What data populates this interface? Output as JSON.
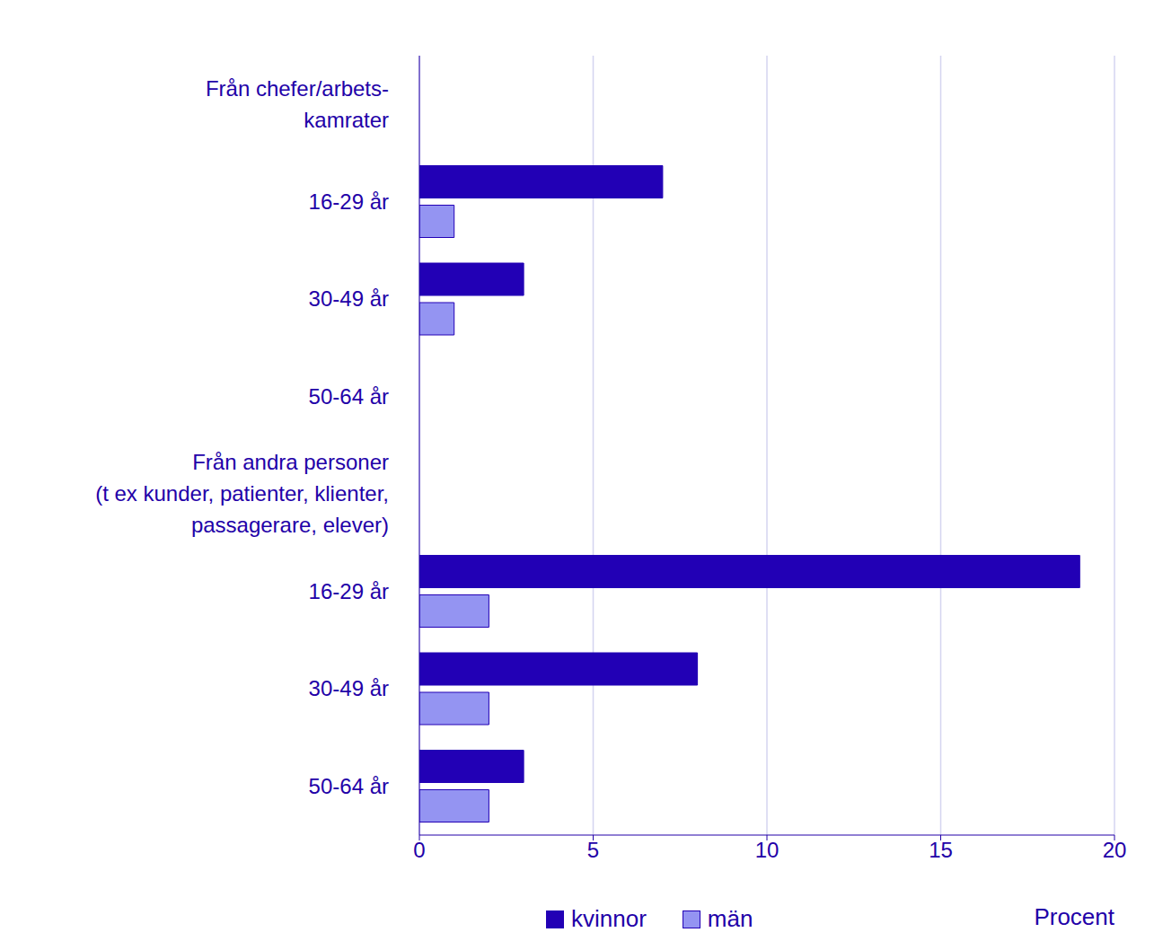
{
  "chart_data": {
    "type": "bar",
    "orientation": "horizontal",
    "categories": [
      "Från chefer/arbets-\nkamrater",
      "16-29 år",
      "30-49 år",
      "50-64 år",
      "Från andra personer\n(t ex kunder, patienter, klienter,\npassagerare, elever)",
      "16-29 år",
      "30-49 år",
      "50-64 år"
    ],
    "series": [
      {
        "name": "kvinnor",
        "color": "#2200b5",
        "values": [
          null,
          7,
          3,
          null,
          null,
          19,
          8,
          3
        ]
      },
      {
        "name": "män",
        "color": "#9494f2",
        "values": [
          null,
          1,
          1,
          null,
          null,
          2,
          2,
          2
        ]
      }
    ],
    "xlim": [
      0,
      20
    ],
    "xticks": [
      0,
      5,
      10,
      15,
      20
    ],
    "x_label": "Procent",
    "grid": true,
    "legend": "bottom"
  }
}
